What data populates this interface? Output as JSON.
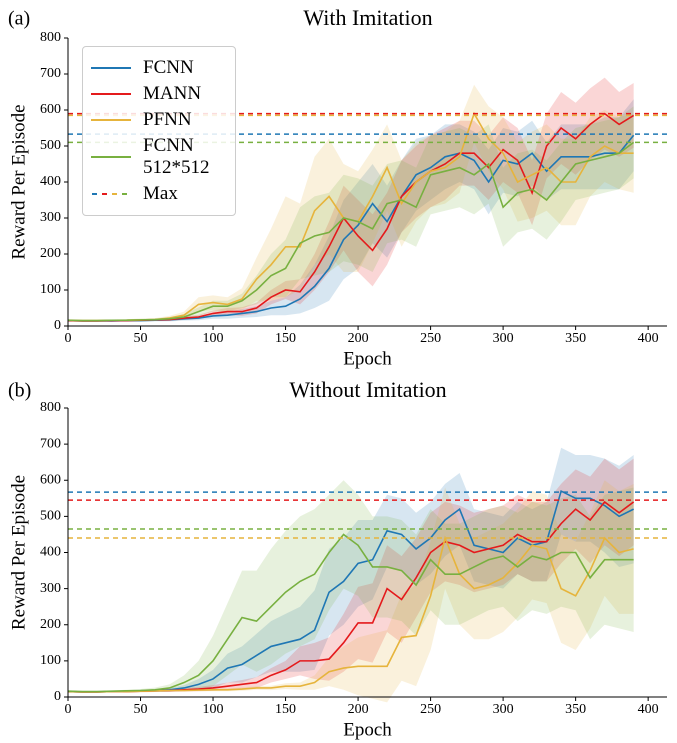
{
  "chart_data": [
    {
      "type": "line",
      "panel_label": "(a)",
      "title": "With Imitation",
      "xlabel": "Epoch",
      "ylabel": "Reward Per Episode",
      "xlim": [
        0,
        413
      ],
      "ylim": [
        0,
        800
      ],
      "xticks": [
        0,
        50,
        100,
        150,
        200,
        250,
        300,
        350,
        400
      ],
      "yticks": [
        0,
        100,
        200,
        300,
        400,
        500,
        600,
        700,
        800
      ],
      "legend": "upper left",
      "max_label": "Max",
      "x": [
        0,
        10,
        20,
        30,
        40,
        50,
        60,
        70,
        80,
        90,
        100,
        110,
        120,
        130,
        140,
        150,
        160,
        170,
        180,
        190,
        200,
        210,
        220,
        230,
        240,
        250,
        260,
        270,
        280,
        290,
        300,
        310,
        320,
        330,
        340,
        350,
        360,
        370,
        380,
        390
      ],
      "series": [
        {
          "name": "FCNN",
          "color": "#1f77b4",
          "max": 533,
          "values": [
            15,
            14,
            14,
            14,
            15,
            15,
            16,
            17,
            20,
            22,
            28,
            30,
            35,
            40,
            50,
            55,
            75,
            110,
            160,
            240,
            280,
            340,
            290,
            360,
            420,
            440,
            470,
            480,
            460,
            400,
            460,
            450,
            480,
            430,
            470,
            470,
            470,
            480,
            480,
            530
          ],
          "spread": [
            3,
            2,
            2,
            2,
            3,
            3,
            3,
            4,
            5,
            6,
            8,
            10,
            12,
            15,
            20,
            25,
            40,
            60,
            90,
            110,
            120,
            110,
            100,
            100,
            100,
            90,
            90,
            80,
            80,
            90,
            90,
            90,
            90,
            80,
            90,
            90,
            90,
            100,
            100,
            100
          ]
        },
        {
          "name": "MANN",
          "color": "#e41a1c",
          "max": 590,
          "values": [
            15,
            14,
            14,
            15,
            15,
            16,
            17,
            18,
            22,
            25,
            35,
            40,
            40,
            50,
            80,
            100,
            95,
            150,
            220,
            300,
            250,
            210,
            270,
            360,
            400,
            430,
            450,
            480,
            480,
            440,
            490,
            460,
            370,
            500,
            550,
            520,
            560,
            590,
            560,
            585
          ],
          "spread": [
            3,
            2,
            2,
            2,
            3,
            3,
            3,
            4,
            5,
            6,
            8,
            10,
            12,
            15,
            20,
            25,
            35,
            50,
            70,
            90,
            100,
            100,
            100,
            100,
            100,
            100,
            100,
            90,
            90,
            90,
            90,
            90,
            90,
            90,
            100,
            100,
            100,
            100,
            90,
            90
          ]
        },
        {
          "name": "PFNN",
          "color": "#e6b43c",
          "max": 585,
          "values": [
            16,
            15,
            15,
            16,
            16,
            17,
            18,
            22,
            30,
            60,
            65,
            60,
            75,
            130,
            170,
            220,
            220,
            320,
            360,
            300,
            290,
            360,
            440,
            340,
            400,
            430,
            440,
            470,
            590,
            520,
            480,
            400,
            420,
            440,
            400,
            400,
            470,
            500,
            480,
            480
          ],
          "spread": [
            3,
            2,
            2,
            2,
            3,
            3,
            4,
            6,
            10,
            20,
            20,
            20,
            30,
            60,
            100,
            140,
            120,
            150,
            160,
            150,
            140,
            130,
            120,
            120,
            110,
            100,
            100,
            100,
            80,
            90,
            100,
            110,
            120,
            120,
            120,
            120,
            110,
            100,
            100,
            110
          ]
        },
        {
          "name": "FCNN 512*512",
          "color": "#78b040",
          "max": 510,
          "values": [
            16,
            15,
            15,
            16,
            16,
            17,
            18,
            20,
            25,
            40,
            55,
            55,
            70,
            100,
            140,
            160,
            230,
            250,
            260,
            300,
            290,
            270,
            340,
            350,
            330,
            420,
            430,
            440,
            420,
            450,
            330,
            370,
            380,
            350,
            400,
            450,
            460,
            470,
            480,
            510
          ],
          "spread": [
            3,
            2,
            2,
            2,
            3,
            3,
            3,
            5,
            8,
            12,
            15,
            15,
            20,
            40,
            60,
            80,
            100,
            110,
            110,
            120,
            120,
            120,
            110,
            110,
            110,
            110,
            110,
            110,
            110,
            110,
            110,
            110,
            110,
            110,
            110,
            100,
            100,
            100,
            100,
            100
          ]
        }
      ]
    },
    {
      "type": "line",
      "panel_label": "(b)",
      "title": "Without Imitation",
      "xlabel": "Epoch",
      "ylabel": "Reward Per Episode",
      "xlim": [
        0,
        413
      ],
      "ylim": [
        0,
        800
      ],
      "xticks": [
        0,
        50,
        100,
        150,
        200,
        250,
        300,
        350,
        400
      ],
      "yticks": [
        0,
        100,
        200,
        300,
        400,
        500,
        600,
        700,
        800
      ],
      "x": [
        0,
        10,
        20,
        30,
        40,
        50,
        60,
        70,
        80,
        90,
        100,
        110,
        120,
        130,
        140,
        150,
        160,
        170,
        180,
        190,
        200,
        210,
        220,
        230,
        240,
        250,
        260,
        270,
        280,
        290,
        300,
        310,
        320,
        330,
        340,
        350,
        360,
        370,
        380,
        390
      ],
      "series": [
        {
          "color": "#1f77b4",
          "max": 567,
          "values": [
            15,
            14,
            14,
            15,
            16,
            17,
            18,
            20,
            25,
            35,
            50,
            80,
            90,
            115,
            140,
            150,
            160,
            185,
            290,
            320,
            370,
            380,
            460,
            450,
            410,
            440,
            490,
            520,
            420,
            410,
            400,
            440,
            420,
            430,
            570,
            550,
            550,
            530,
            500,
            520
          ],
          "spread": [
            3,
            2,
            2,
            2,
            3,
            3,
            4,
            5,
            8,
            15,
            25,
            40,
            50,
            60,
            70,
            80,
            90,
            110,
            120,
            120,
            120,
            110,
            100,
            100,
            100,
            100,
            100,
            100,
            100,
            100,
            100,
            100,
            100,
            110,
            120,
            120,
            120,
            130,
            140,
            150
          ]
        },
        {
          "color": "#e41a1c",
          "max": 545,
          "values": [
            15,
            14,
            14,
            15,
            15,
            16,
            17,
            18,
            20,
            22,
            25,
            30,
            35,
            40,
            60,
            75,
            100,
            100,
            105,
            150,
            205,
            205,
            300,
            270,
            330,
            400,
            430,
            420,
            400,
            410,
            420,
            450,
            430,
            430,
            480,
            520,
            490,
            540,
            510,
            540
          ],
          "spread": [
            3,
            2,
            2,
            2,
            3,
            3,
            3,
            4,
            5,
            6,
            8,
            10,
            12,
            15,
            20,
            25,
            40,
            50,
            60,
            80,
            100,
            110,
            120,
            120,
            110,
            110,
            110,
            110,
            110,
            110,
            110,
            110,
            110,
            110,
            110,
            110,
            120,
            120,
            120,
            120
          ]
        },
        {
          "color": "#e6b43c",
          "max": 440,
          "values": [
            15,
            14,
            14,
            15,
            15,
            16,
            17,
            18,
            18,
            19,
            20,
            20,
            22,
            25,
            25,
            30,
            30,
            40,
            70,
            80,
            85,
            85,
            85,
            165,
            170,
            280,
            440,
            340,
            300,
            310,
            330,
            370,
            420,
            410,
            300,
            280,
            350,
            440,
            400,
            410
          ],
          "spread": [
            3,
            2,
            2,
            2,
            3,
            3,
            3,
            3,
            3,
            3,
            4,
            4,
            5,
            5,
            6,
            8,
            10,
            20,
            40,
            60,
            80,
            90,
            100,
            120,
            140,
            150,
            140,
            140,
            140,
            150,
            150,
            150,
            150,
            150,
            150,
            150,
            160,
            160,
            170,
            180
          ]
        },
        {
          "color": "#78b040",
          "max": 465,
          "values": [
            16,
            15,
            15,
            16,
            17,
            18,
            20,
            25,
            40,
            60,
            100,
            160,
            220,
            210,
            250,
            290,
            320,
            340,
            400,
            450,
            420,
            360,
            360,
            350,
            310,
            380,
            340,
            340,
            360,
            380,
            390,
            360,
            390,
            380,
            400,
            400,
            330,
            380,
            380,
            380
          ],
          "spread": [
            3,
            2,
            2,
            2,
            3,
            4,
            6,
            10,
            20,
            40,
            70,
            100,
            130,
            140,
            160,
            170,
            180,
            180,
            160,
            150,
            140,
            140,
            140,
            140,
            140,
            140,
            140,
            140,
            140,
            140,
            140,
            150,
            150,
            150,
            150,
            160,
            170,
            180,
            190,
            200
          ]
        }
      ]
    }
  ]
}
